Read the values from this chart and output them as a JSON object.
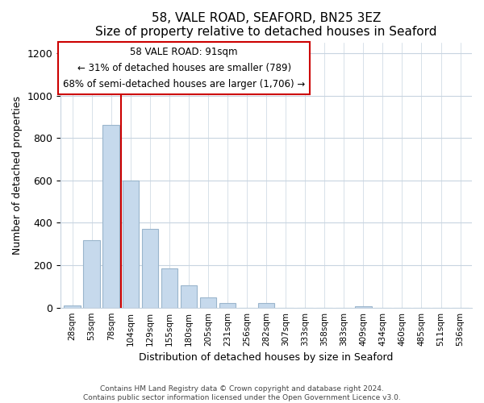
{
  "title": "58, VALE ROAD, SEAFORD, BN25 3EZ",
  "subtitle": "Size of property relative to detached houses in Seaford",
  "xlabel": "Distribution of detached houses by size in Seaford",
  "ylabel": "Number of detached properties",
  "bar_labels": [
    "28sqm",
    "53sqm",
    "78sqm",
    "104sqm",
    "129sqm",
    "155sqm",
    "180sqm",
    "205sqm",
    "231sqm",
    "256sqm",
    "282sqm",
    "307sqm",
    "333sqm",
    "358sqm",
    "383sqm",
    "409sqm",
    "434sqm",
    "460sqm",
    "485sqm",
    "511sqm",
    "536sqm"
  ],
  "bar_values": [
    10,
    318,
    860,
    600,
    370,
    185,
    105,
    47,
    22,
    0,
    20,
    0,
    0,
    0,
    0,
    5,
    0,
    0,
    0,
    0,
    0
  ],
  "bar_color": "#c6d9ec",
  "bar_edge_color": "#9ab5cc",
  "vline_x_idx": 2.5,
  "vline_color": "#cc0000",
  "ylim": [
    0,
    1250
  ],
  "yticks": [
    0,
    200,
    400,
    600,
    800,
    1000,
    1200
  ],
  "ann_line1": "58 VALE ROAD: 91sqm",
  "ann_line2": "← 31% of detached houses are smaller (789)",
  "ann_line3": "68% of semi-detached houses are larger (1,706) →",
  "annotation_box_color": "#ffffff",
  "annotation_box_edge_color": "#cc0000",
  "footer_line1": "Contains HM Land Registry data © Crown copyright and database right 2024.",
  "footer_line2": "Contains public sector information licensed under the Open Government Licence v3.0.",
  "background_color": "#ffffff",
  "grid_color": "#c8d4e0"
}
